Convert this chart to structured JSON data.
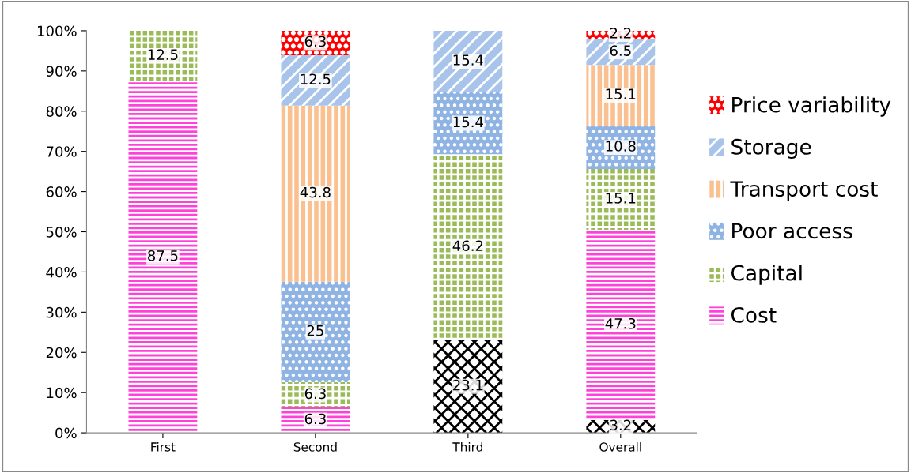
{
  "chart_data": {
    "type": "bar",
    "stacked": true,
    "categories": [
      "First",
      "Second",
      "Third",
      "Overall"
    ],
    "series": [
      {
        "color": "#000000",
        "values": [
          0,
          0,
          23.1,
          3.2
        ],
        "value_labels": [
          null,
          null,
          "23.1",
          "3.2"
        ]
      },
      {
        "name": "Cost",
        "color": "#ff40d9",
        "values": [
          87.5,
          6.3,
          0,
          47.3
        ],
        "value_labels": [
          "87.5",
          "6.3",
          null,
          "47.3"
        ]
      },
      {
        "name": "Capital",
        "color": "#9bbb59",
        "values": [
          12.5,
          6.3,
          46.2,
          15.1
        ],
        "value_labels": [
          "12.5",
          "6.3",
          "46.2",
          "15.1"
        ]
      },
      {
        "name": "Poor access",
        "color": "#8fb4e3",
        "values": [
          0,
          25,
          15.4,
          10.8
        ],
        "value_labels": [
          null,
          "25",
          "15.4",
          "10.8"
        ]
      },
      {
        "name": "Transport cost",
        "color": "#fac090",
        "values": [
          0,
          43.8,
          0,
          15.1
        ],
        "value_labels": [
          null,
          "43.8",
          null,
          "15.1"
        ]
      },
      {
        "name": "Storage",
        "color": "#a9c4eb",
        "values": [
          0,
          12.5,
          15.4,
          6.5
        ],
        "value_labels": [
          null,
          "12.5",
          "15.4",
          "6.5"
        ]
      },
      {
        "name": "Price variability",
        "color": "#ff0000",
        "values": [
          0,
          6.3,
          0,
          2.2
        ],
        "value_labels": [
          null,
          "6.3",
          null,
          "2.2"
        ]
      }
    ],
    "ylim": [
      0,
      100
    ],
    "yticks": [
      {
        "value": 0,
        "label": "0%"
      },
      {
        "value": 10,
        "label": "10%"
      },
      {
        "value": 20,
        "label": "20%"
      },
      {
        "value": 30,
        "label": "30%"
      },
      {
        "value": 40,
        "label": "40%"
      },
      {
        "value": 50,
        "label": "50%"
      },
      {
        "value": 60,
        "label": "60%"
      },
      {
        "value": 70,
        "label": "70%"
      },
      {
        "value": 80,
        "label": "80%"
      },
      {
        "value": 90,
        "label": "90%"
      },
      {
        "value": 100,
        "label": "100%"
      }
    ],
    "legend": "right"
  }
}
